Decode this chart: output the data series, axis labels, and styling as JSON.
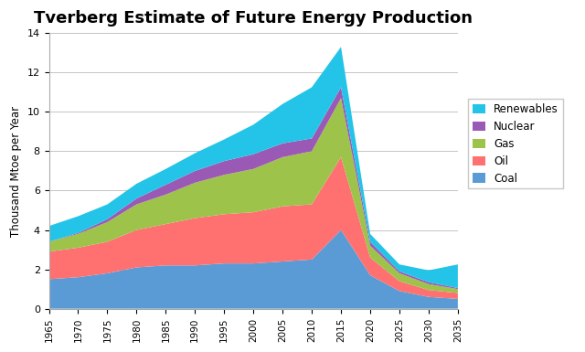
{
  "title": "Tverberg Estimate of Future Energy Production",
  "ylabel": "Thousand Mtoe per Year",
  "years": [
    1965,
    1970,
    1975,
    1980,
    1985,
    1990,
    1995,
    2000,
    2005,
    2010,
    2015,
    2020,
    2025,
    2030,
    2035
  ],
  "coal": [
    1.5,
    1.6,
    1.8,
    2.1,
    2.2,
    2.2,
    2.3,
    2.3,
    2.4,
    2.5,
    4.0,
    1.7,
    0.9,
    0.6,
    0.5
  ],
  "oil": [
    1.4,
    1.5,
    1.6,
    1.9,
    2.1,
    2.4,
    2.5,
    2.6,
    2.8,
    2.8,
    3.7,
    0.9,
    0.5,
    0.35,
    0.3
  ],
  "gas": [
    0.5,
    0.7,
    1.0,
    1.3,
    1.5,
    1.8,
    2.0,
    2.2,
    2.5,
    2.7,
    3.0,
    0.6,
    0.4,
    0.3,
    0.2
  ],
  "nuclear": [
    0.0,
    0.05,
    0.15,
    0.3,
    0.5,
    0.6,
    0.7,
    0.75,
    0.7,
    0.65,
    0.55,
    0.2,
    0.1,
    0.1,
    0.05
  ],
  "renewables": [
    0.8,
    0.85,
    0.75,
    0.75,
    0.8,
    0.9,
    1.1,
    1.5,
    2.0,
    2.6,
    2.05,
    0.4,
    0.35,
    0.6,
    1.2
  ],
  "coal_color": "#5B9BD5",
  "oil_color": "#FF7070",
  "gas_color": "#9DC34A",
  "nuclear_color": "#9B59B6",
  "renewables_color": "#23C4E8",
  "ylim": [
    0,
    14
  ],
  "background_color": "#FFFFFF",
  "grid_color": "#BBBBBB",
  "title_fontsize": 13,
  "figsize": [
    6.4,
    3.85
  ],
  "dpi": 100
}
